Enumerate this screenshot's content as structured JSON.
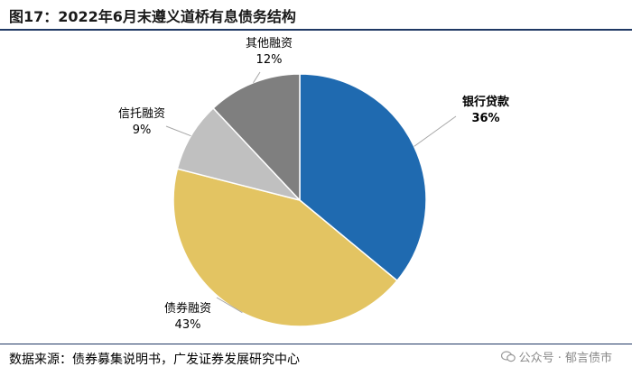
{
  "title": "图17：2022年6月末遵义道桥有息债务结构",
  "source": "数据来源：债券募集说明书，广发证券发展研究中心",
  "watermark": "公众号 · 郁言债市",
  "chart_data": {
    "type": "pie",
    "title": "图17：2022年6月末遵义道桥有息债务结构",
    "slices": [
      {
        "label": "银行贷款",
        "value_text": "36%",
        "value": 36,
        "color": "#1f6ab0"
      },
      {
        "label": "债券融资",
        "value_text": "43%",
        "value": 43,
        "color": "#e3c462"
      },
      {
        "label": "信托融资",
        "value_text": "9%",
        "value": 9,
        "color": "#c0c0c0"
      },
      {
        "label": "其他融资",
        "value_text": "12%",
        "value": 12,
        "color": "#7f7f7f"
      }
    ]
  }
}
